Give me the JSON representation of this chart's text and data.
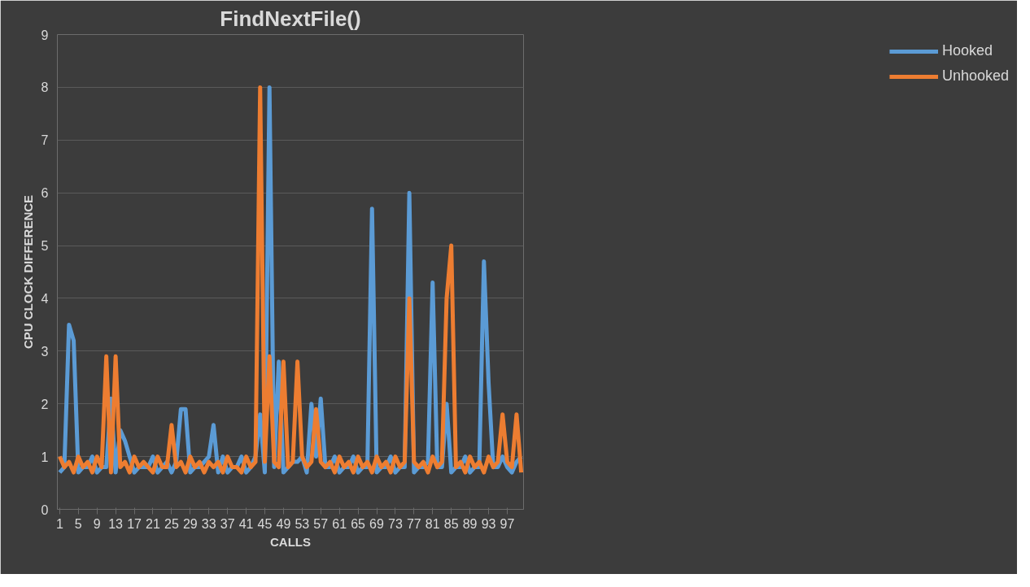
{
  "chart_data": {
    "type": "line",
    "title": "FindNextFile()",
    "xlabel": "CALLS",
    "ylabel": "CPU CLOCK DIFFERENCE",
    "x": [
      1,
      2,
      3,
      4,
      5,
      6,
      7,
      8,
      9,
      10,
      11,
      12,
      13,
      14,
      15,
      16,
      17,
      18,
      19,
      20,
      21,
      22,
      23,
      24,
      25,
      26,
      27,
      28,
      29,
      30,
      31,
      32,
      33,
      34,
      35,
      36,
      37,
      38,
      39,
      40,
      41,
      42,
      43,
      44,
      45,
      46,
      47,
      48,
      49,
      50,
      51,
      52,
      53,
      54,
      55,
      56,
      57,
      58,
      59,
      60,
      61,
      62,
      63,
      64,
      65,
      66,
      67,
      68,
      69,
      70,
      71,
      72,
      73,
      74,
      75,
      76,
      77,
      78,
      79,
      80,
      81,
      82,
      83,
      84,
      85,
      86,
      87,
      88,
      89,
      90,
      91,
      92,
      93,
      94,
      95,
      96,
      97,
      98,
      99,
      100
    ],
    "xlim": [
      0.5,
      100.5
    ],
    "xticks": [
      1,
      5,
      9,
      13,
      17,
      21,
      25,
      29,
      33,
      37,
      41,
      45,
      49,
      53,
      57,
      61,
      65,
      69,
      73,
      77,
      81,
      85,
      89,
      93,
      97
    ],
    "ylim": [
      0,
      9
    ],
    "yticks": [
      0,
      1,
      2,
      3,
      4,
      5,
      6,
      7,
      8,
      9
    ],
    "series": [
      {
        "name": "Hooked",
        "color": "#5b9bd5",
        "values": [
          0.7,
          0.8,
          3.5,
          3.2,
          0.7,
          0.8,
          0.8,
          1.0,
          0.7,
          0.8,
          0.8,
          2.1,
          0.7,
          1.5,
          1.3,
          1.0,
          0.7,
          0.8,
          0.8,
          0.8,
          1.0,
          0.7,
          0.8,
          0.9,
          0.7,
          0.9,
          1.9,
          1.9,
          0.7,
          0.8,
          0.8,
          0.9,
          1.0,
          1.6,
          0.7,
          1.0,
          0.7,
          0.8,
          0.8,
          1.0,
          0.7,
          0.8,
          1.0,
          1.8,
          0.7,
          8.0,
          0.8,
          2.8,
          0.7,
          0.8,
          0.9,
          0.9,
          1.0,
          0.7,
          2.0,
          1.0,
          2.1,
          0.8,
          0.8,
          1.0,
          0.7,
          0.8,
          0.8,
          1.0,
          0.7,
          0.8,
          0.8,
          5.7,
          0.7,
          0.8,
          0.8,
          1.0,
          0.7,
          0.8,
          0.8,
          6.0,
          0.7,
          0.8,
          0.8,
          0.9,
          4.3,
          0.8,
          0.8,
          2.0,
          0.7,
          0.8,
          0.8,
          1.0,
          0.7,
          0.8,
          0.8,
          4.7,
          2.4,
          0.8,
          0.8,
          1.0,
          0.8,
          0.7,
          0.9,
          1.0
        ]
      },
      {
        "name": "Unhooked",
        "color": "#ed7d31",
        "values": [
          1.0,
          0.8,
          0.9,
          0.7,
          1.0,
          0.8,
          0.9,
          0.7,
          1.0,
          0.8,
          2.9,
          0.7,
          2.9,
          0.8,
          0.9,
          0.7,
          1.0,
          0.8,
          0.9,
          0.8,
          0.7,
          1.0,
          0.8,
          0.8,
          1.6,
          0.8,
          0.9,
          0.7,
          1.0,
          0.8,
          0.9,
          0.7,
          0.9,
          0.8,
          0.9,
          0.7,
          1.0,
          0.8,
          0.8,
          0.7,
          1.0,
          0.8,
          0.9,
          8.0,
          0.9,
          2.9,
          0.9,
          0.8,
          2.8,
          0.8,
          0.9,
          2.8,
          1.0,
          0.8,
          0.9,
          1.9,
          0.9,
          0.8,
          0.9,
          0.7,
          1.0,
          0.8,
          0.9,
          0.7,
          1.0,
          0.8,
          0.9,
          0.7,
          1.0,
          0.8,
          0.9,
          0.7,
          1.0,
          0.8,
          0.9,
          4.0,
          0.9,
          0.8,
          0.9,
          0.7,
          1.0,
          0.8,
          0.9,
          4.0,
          5.0,
          0.8,
          0.9,
          0.7,
          1.0,
          0.8,
          0.9,
          0.7,
          1.0,
          0.8,
          0.9,
          1.8,
          0.9,
          0.8,
          1.8,
          0.7
        ]
      }
    ],
    "grid": "y",
    "legend": "right",
    "marker": "none",
    "line_style": "solid"
  }
}
